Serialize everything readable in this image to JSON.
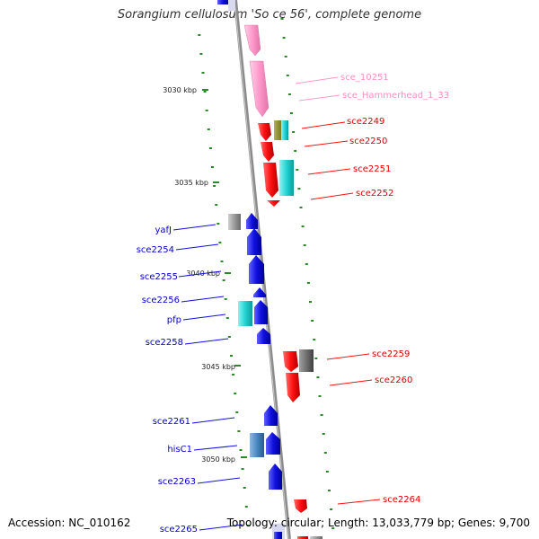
{
  "title": "Sorangium cellulosum 'So ce 56', complete genome",
  "footer": {
    "accession": "Accession: NC_010162",
    "summary": "Topology: circular; Length: 13,033,779 bp; Genes: 9,700"
  },
  "colors": {
    "forward_gene": "#1010e0",
    "reverse_gene": "#ff1010",
    "rna": "#ff99cc",
    "cyan_feature": "#22d3d3",
    "gray_feature": "#8a8a8a",
    "steel_feature": "#4a88c0",
    "tick": "#2a8a2a",
    "backbone": "#8c8c8c"
  },
  "scale_ticks": [
    {
      "label": "3030 kbp"
    },
    {
      "label": "3035 kbp"
    },
    {
      "label": "3040 kbp"
    },
    {
      "label": "3045 kbp"
    },
    {
      "label": "3050 kbp"
    }
  ],
  "genes_right": [
    {
      "name": "sce_10251",
      "kind": "rna"
    },
    {
      "name": "sce_Hammerhead_1_33",
      "kind": "rna"
    },
    {
      "name": "sce2249",
      "kind": "reverse"
    },
    {
      "name": "sce2250",
      "kind": "reverse"
    },
    {
      "name": "sce2251",
      "kind": "reverse"
    },
    {
      "name": "sce2252",
      "kind": "reverse"
    },
    {
      "name": "sce2259",
      "kind": "reverse"
    },
    {
      "name": "sce2260",
      "kind": "reverse"
    },
    {
      "name": "sce2264",
      "kind": "reverse"
    }
  ],
  "genes_left": [
    {
      "name": "yafJ",
      "kind": "forward"
    },
    {
      "name": "sce2254",
      "kind": "forward"
    },
    {
      "name": "sce2255",
      "kind": "forward"
    },
    {
      "name": "sce2256",
      "kind": "forward"
    },
    {
      "name": "pfp",
      "kind": "forward"
    },
    {
      "name": "sce2258",
      "kind": "forward"
    },
    {
      "name": "sce2261",
      "kind": "forward"
    },
    {
      "name": "hisC1",
      "kind": "forward"
    },
    {
      "name": "sce2263",
      "kind": "forward"
    },
    {
      "name": "sce2265",
      "kind": "forward"
    }
  ]
}
